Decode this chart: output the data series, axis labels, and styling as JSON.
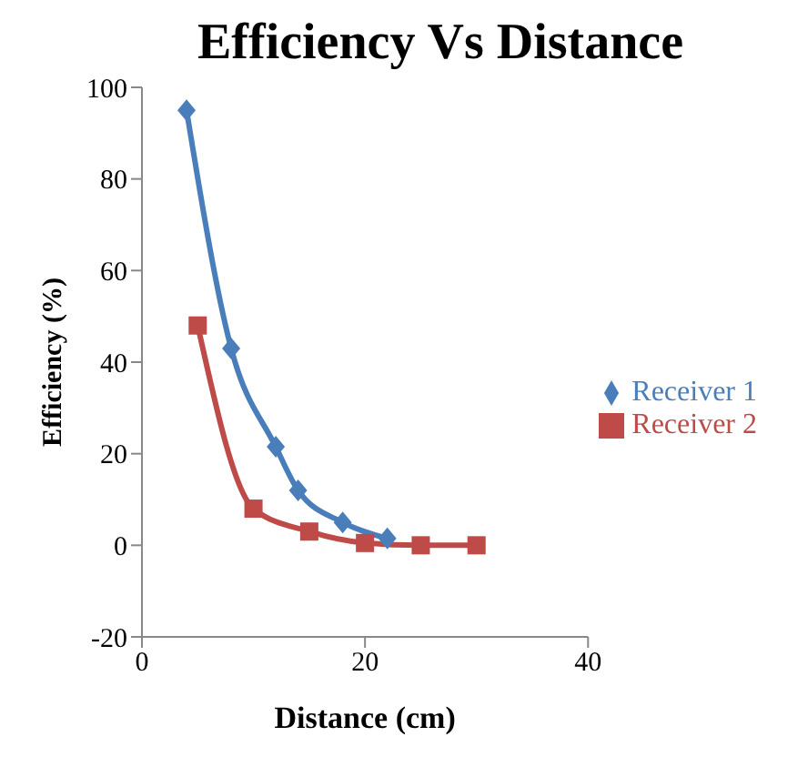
{
  "chart_data": {
    "type": "line",
    "title": "Efficiency Vs Distance",
    "xlabel": "Distance (cm)",
    "ylabel": "Efficiency (%)",
    "series": [
      {
        "name": "Receiver 1",
        "color": "#4a7ebb",
        "marker": "diamond",
        "x": [
          4,
          8,
          12,
          14,
          18,
          22
        ],
        "values": [
          95,
          43,
          21.5,
          12,
          5,
          1.5
        ]
      },
      {
        "name": "Receiver 2",
        "color": "#be4b48",
        "marker": "square",
        "x": [
          5,
          10,
          15,
          20,
          25,
          30
        ],
        "values": [
          48,
          8,
          3,
          0.5,
          0,
          0
        ]
      }
    ],
    "xlim": [
      0,
      40
    ],
    "xticks": [
      0,
      20,
      40
    ],
    "ylim": [
      -20,
      100
    ],
    "yticks": [
      -20,
      0,
      20,
      40,
      60,
      80,
      100
    ],
    "grid": false,
    "legend": "right"
  }
}
